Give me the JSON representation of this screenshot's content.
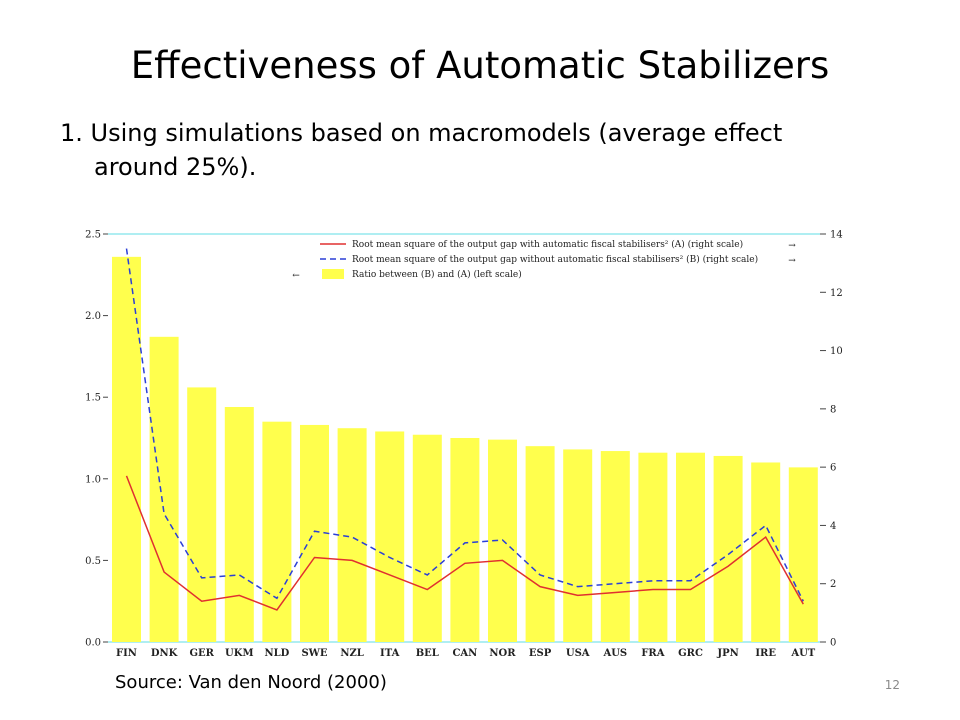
{
  "slide": {
    "title": "Effectiveness of Automatic Stabilizers",
    "bullet_line1": "1. Using simulations based on macromodels (average effect",
    "bullet_line2": "around 25%).",
    "source": "Source: Van den Noord (2000)",
    "page_number": "12"
  },
  "chart_data": {
    "type": "bar",
    "categories": [
      "FIN",
      "DNK",
      "GER",
      "UKM",
      "NLD",
      "SWE",
      "NZL",
      "ITA",
      "BEL",
      "CAN",
      "NOR",
      "ESP",
      "USA",
      "AUS",
      "FRA",
      "GRC",
      "JPN",
      "IRE",
      "AUT"
    ],
    "series": [
      {
        "name": "Ratio between (B) and (A) (left scale)",
        "type": "bar",
        "axis": "left",
        "color": "#ffff4d",
        "values": [
          2.36,
          1.87,
          1.56,
          1.44,
          1.35,
          1.33,
          1.31,
          1.29,
          1.27,
          1.25,
          1.24,
          1.2,
          1.18,
          1.17,
          1.16,
          1.16,
          1.14,
          1.1,
          1.07
        ]
      },
      {
        "name": "Root mean square of the output gap with automatic fiscal stabilisers² (A) (right scale)",
        "type": "line",
        "axis": "right",
        "color": "#e03030",
        "values": [
          5.7,
          2.4,
          1.4,
          1.6,
          1.1,
          2.9,
          2.8,
          2.3,
          1.8,
          2.7,
          2.8,
          1.9,
          1.6,
          1.7,
          1.8,
          1.8,
          2.6,
          3.6,
          1.3
        ]
      },
      {
        "name": "Root mean square of the output gap without automatic fiscal stabilisers² (B) (right scale)",
        "type": "line",
        "axis": "right",
        "dash": true,
        "color": "#2b3fd6",
        "values": [
          13.5,
          4.4,
          2.2,
          2.3,
          1.5,
          3.8,
          3.6,
          2.9,
          2.3,
          3.4,
          3.5,
          2.3,
          1.9,
          2.0,
          2.1,
          2.1,
          3.0,
          4.0,
          1.4
        ]
      }
    ],
    "left_axis": {
      "ylim": [
        0,
        2.5
      ],
      "ticks": [
        "0.0",
        "0.5",
        "1.0",
        "1.5",
        "2.0",
        "2.5"
      ]
    },
    "right_axis": {
      "ylim": [
        0,
        14
      ],
      "ticks": [
        "0",
        "2",
        "4",
        "6",
        "8",
        "10",
        "12",
        "14"
      ]
    },
    "legend_arrows": [
      "→",
      "→",
      "←"
    ],
    "legend_placement": "top-right"
  }
}
